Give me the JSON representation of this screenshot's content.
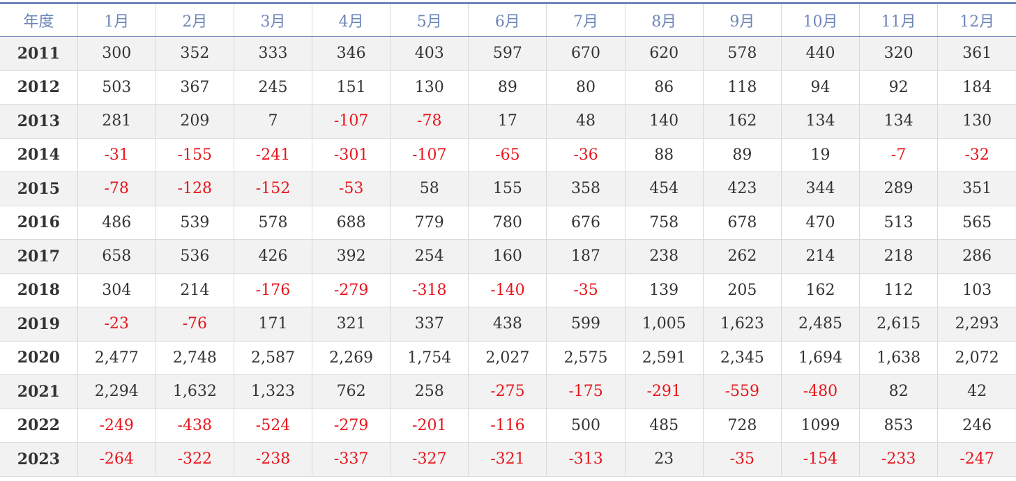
{
  "table": {
    "year_header": "年度",
    "month_headers": [
      "1月",
      "2月",
      "3月",
      "4月",
      "5月",
      "6月",
      "7月",
      "8月",
      "9月",
      "10月",
      "11月",
      "12月"
    ],
    "colors": {
      "header_text": "#6d86b8",
      "negative": "#e8141b",
      "positive": "#333333",
      "row_stripe": "#f2f2f2"
    }
  },
  "chart_data": {
    "type": "table",
    "columns": [
      "年度",
      "1月",
      "2月",
      "3月",
      "4月",
      "5月",
      "6月",
      "7月",
      "8月",
      "9月",
      "10月",
      "11月",
      "12月"
    ],
    "rows": [
      {
        "year": "2011",
        "values": [
          "300",
          "352",
          "333",
          "346",
          "403",
          "597",
          "670",
          "620",
          "578",
          "440",
          "320",
          "361"
        ]
      },
      {
        "year": "2012",
        "values": [
          "503",
          "367",
          "245",
          "151",
          "130",
          "89",
          "80",
          "86",
          "118",
          "94",
          "92",
          "184"
        ]
      },
      {
        "year": "2013",
        "values": [
          "281",
          "209",
          "7",
          "-107",
          "-78",
          "17",
          "48",
          "140",
          "162",
          "134",
          "134",
          "130"
        ]
      },
      {
        "year": "2014",
        "values": [
          "-31",
          "-155",
          "-241",
          "-301",
          "-107",
          "-65",
          "-36",
          "88",
          "89",
          "19",
          "-7",
          "-32"
        ]
      },
      {
        "year": "2015",
        "values": [
          "-78",
          "-128",
          "-152",
          "-53",
          "58",
          "155",
          "358",
          "454",
          "423",
          "344",
          "289",
          "351"
        ]
      },
      {
        "year": "2016",
        "values": [
          "486",
          "539",
          "578",
          "688",
          "779",
          "780",
          "676",
          "758",
          "678",
          "470",
          "513",
          "565"
        ]
      },
      {
        "year": "2017",
        "values": [
          "658",
          "536",
          "426",
          "392",
          "254",
          "160",
          "187",
          "238",
          "262",
          "214",
          "218",
          "286"
        ]
      },
      {
        "year": "2018",
        "values": [
          "304",
          "214",
          "-176",
          "-279",
          "-318",
          "-140",
          "-35",
          "139",
          "205",
          "162",
          "112",
          "103"
        ]
      },
      {
        "year": "2019",
        "values": [
          "-23",
          "-76",
          "171",
          "321",
          "337",
          "438",
          "599",
          "1,005",
          "1,623",
          "2,485",
          "2,615",
          "2,293"
        ]
      },
      {
        "year": "2020",
        "values": [
          "2,477",
          "2,748",
          "2,587",
          "2,269",
          "1,754",
          "2,027",
          "2,575",
          "2,591",
          "2,345",
          "1,694",
          "1,638",
          "2,072"
        ]
      },
      {
        "year": "2021",
        "values": [
          "2,294",
          "1,632",
          "1,323",
          "762",
          "258",
          "-275",
          "-175",
          "-291",
          "-559",
          "-480",
          "82",
          "42"
        ]
      },
      {
        "year": "2022",
        "values": [
          "-249",
          "-438",
          "-524",
          "-279",
          "-201",
          "-116",
          "500",
          "485",
          "728",
          "1099",
          "853",
          "246"
        ]
      },
      {
        "year": "2023",
        "values": [
          "-264",
          "-322",
          "-238",
          "-337",
          "-327",
          "-321",
          "-313",
          "23",
          "-35",
          "-154",
          "-233",
          "-247"
        ]
      }
    ]
  }
}
